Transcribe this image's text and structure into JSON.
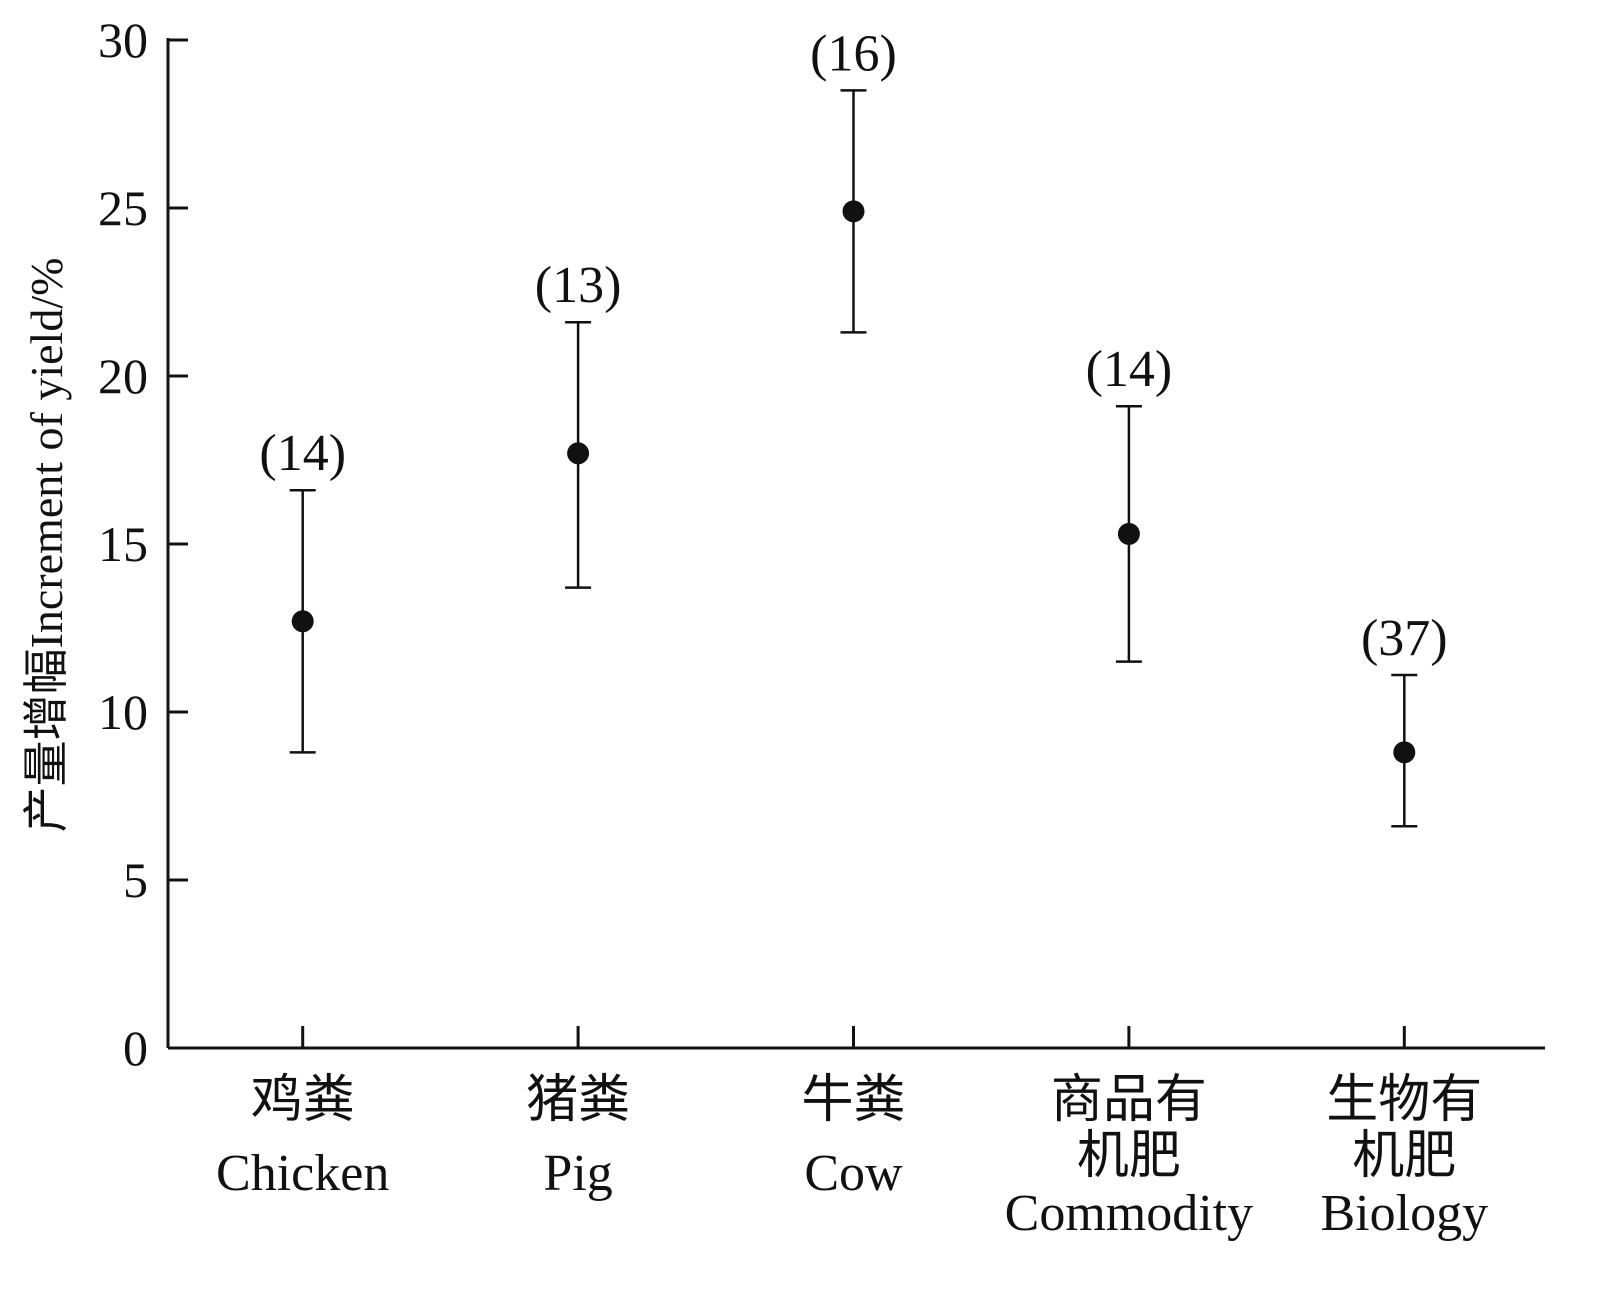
{
  "chart_data": {
    "type": "scatter",
    "title": "",
    "xlabel": "",
    "ylabel": "产量增幅Increment of yield/%",
    "ylim": [
      0,
      30
    ],
    "yticks": [
      0,
      5,
      10,
      15,
      20,
      25,
      30
    ],
    "grid": false,
    "legend": "none",
    "categories": [
      {
        "cn": [
          "鸡粪"
        ],
        "en": "Chicken"
      },
      {
        "cn": [
          "猪粪"
        ],
        "en": "Pig"
      },
      {
        "cn": [
          "牛粪"
        ],
        "en": "Cow"
      },
      {
        "cn": [
          "商品有",
          "机肥"
        ],
        "en": "Commodity"
      },
      {
        "cn": [
          "生物有",
          "机肥"
        ],
        "en": "Biology"
      }
    ],
    "values": [
      12.7,
      17.7,
      24.9,
      15.3,
      8.8
    ],
    "error_upper": [
      16.6,
      21.6,
      28.5,
      19.1,
      11.1
    ],
    "error_lower": [
      8.8,
      13.7,
      21.3,
      11.5,
      6.6
    ],
    "sample_labels": [
      "(14)",
      "(13)",
      "(16)",
      "(14)",
      "(37)"
    ],
    "colors": {
      "marks": "#111111"
    }
  }
}
